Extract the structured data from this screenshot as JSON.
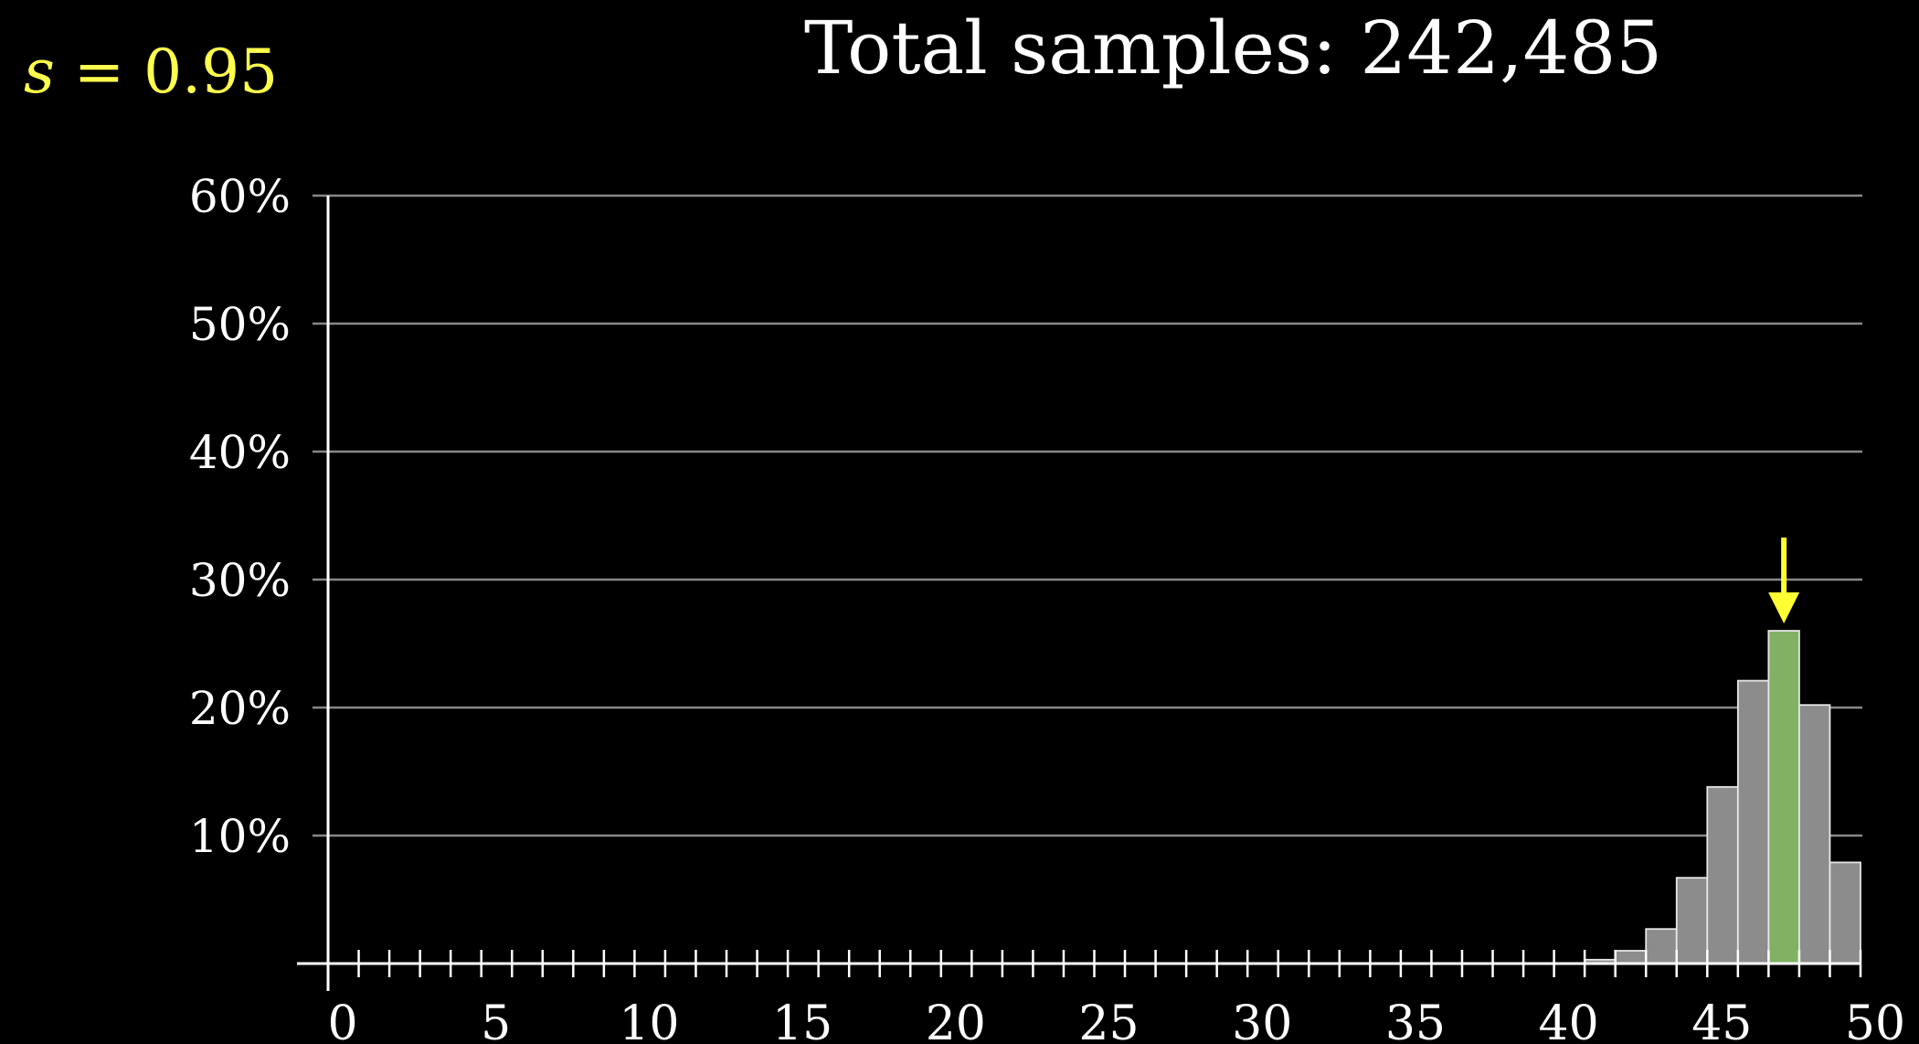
{
  "header": {
    "param_symbol": "s",
    "param_equals": " = ",
    "param_value": "0.95",
    "title_label": "Total samples:",
    "title_value": "242,485"
  },
  "colors": {
    "background": "#000000",
    "param_text": "#ffff4d",
    "bar_fill": "#8c8c8c",
    "bar_stroke": "#e6e6e6",
    "highlight_bar_fill": "#82b163",
    "arrow": "#ffff33",
    "grid": "#888888",
    "axis": "#ffffff",
    "text": "#ffffff"
  },
  "chart_data": {
    "type": "bar",
    "title": "Total samples: 242,485",
    "xlim": [
      0,
      50
    ],
    "ylim": [
      0,
      60
    ],
    "x_ticks": [
      0,
      5,
      10,
      15,
      20,
      25,
      30,
      35,
      40,
      45,
      50
    ],
    "x_tick_labels": [
      "0",
      "5",
      "10",
      "15",
      "20",
      "25",
      "30",
      "35",
      "40",
      "45",
      "50"
    ],
    "y_ticks": [
      10,
      20,
      30,
      40,
      50,
      60
    ],
    "y_tick_labels": [
      "10%",
      "20%",
      "30%",
      "40%",
      "50%",
      "60%"
    ],
    "grid": true,
    "categories": [
      0,
      1,
      2,
      3,
      4,
      5,
      6,
      7,
      8,
      9,
      10,
      11,
      12,
      13,
      14,
      15,
      16,
      17,
      18,
      19,
      20,
      21,
      22,
      23,
      24,
      25,
      26,
      27,
      28,
      29,
      30,
      31,
      32,
      33,
      34,
      35,
      36,
      37,
      38,
      39,
      40,
      41,
      42,
      43,
      44,
      45,
      46,
      47,
      48,
      49,
      50
    ],
    "values": [
      0,
      0,
      0,
      0,
      0,
      0,
      0,
      0,
      0,
      0,
      0,
      0,
      0,
      0,
      0,
      0,
      0,
      0,
      0,
      0,
      0,
      0,
      0,
      0,
      0,
      0,
      0,
      0,
      0,
      0,
      0,
      0,
      0,
      0,
      0,
      0,
      0,
      0,
      0,
      0,
      0,
      0,
      0.3,
      1,
      2.7,
      6.7,
      13.8,
      22.1,
      26,
      20.2,
      7.9
    ],
    "highlight_index": 48,
    "arrow_on_index": 48
  }
}
